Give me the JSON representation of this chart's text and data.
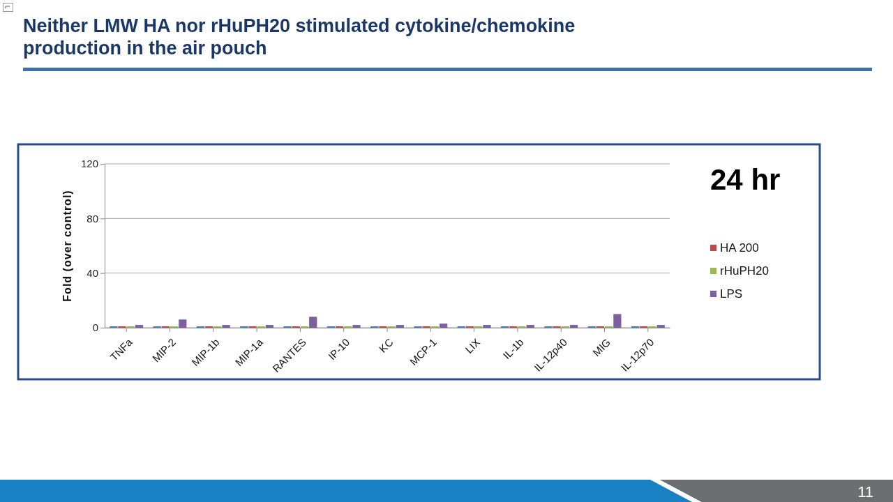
{
  "chart_data": {
    "type": "bar",
    "title": "Neither LMW HA nor rHuPH20 stimulated cytokine/chemokine production in the air pouch",
    "ylabel": "Fold (over control)",
    "legend_title": "24 hr",
    "categories": [
      "TNFa",
      "MIP-2",
      "MIP-1b",
      "MIP-1a",
      "RANTES",
      "IP-10",
      "KC",
      "MCP-1",
      "LIX",
      "IL-1b",
      "IL-12p40",
      "MIG",
      "IL-12p70"
    ],
    "series": [
      {
        "color": "#4a7ebb",
        "values": [
          1,
          1,
          1,
          1,
          1,
          1,
          1,
          1,
          1,
          1,
          1,
          1,
          1
        ]
      },
      {
        "name": "HA 200",
        "color": "#be4b48",
        "values": [
          1,
          1,
          1,
          1,
          1,
          1,
          1,
          1,
          1,
          1,
          1,
          1,
          1
        ]
      },
      {
        "name": "rHuPH20",
        "color": "#98b954",
        "values": [
          1,
          1,
          1,
          1,
          1,
          1,
          1,
          1,
          1,
          1,
          1,
          1,
          1
        ]
      },
      {
        "name": "LPS",
        "color": "#7d60a0",
        "values": [
          2,
          6,
          2,
          2,
          8,
          2,
          2,
          3,
          2,
          2,
          2,
          10,
          2
        ]
      }
    ],
    "ylim": [
      0,
      120
    ],
    "yticks": [
      0,
      40,
      80,
      120
    ],
    "grid": "y",
    "legend": "right",
    "annotations": [
      "11"
    ]
  }
}
